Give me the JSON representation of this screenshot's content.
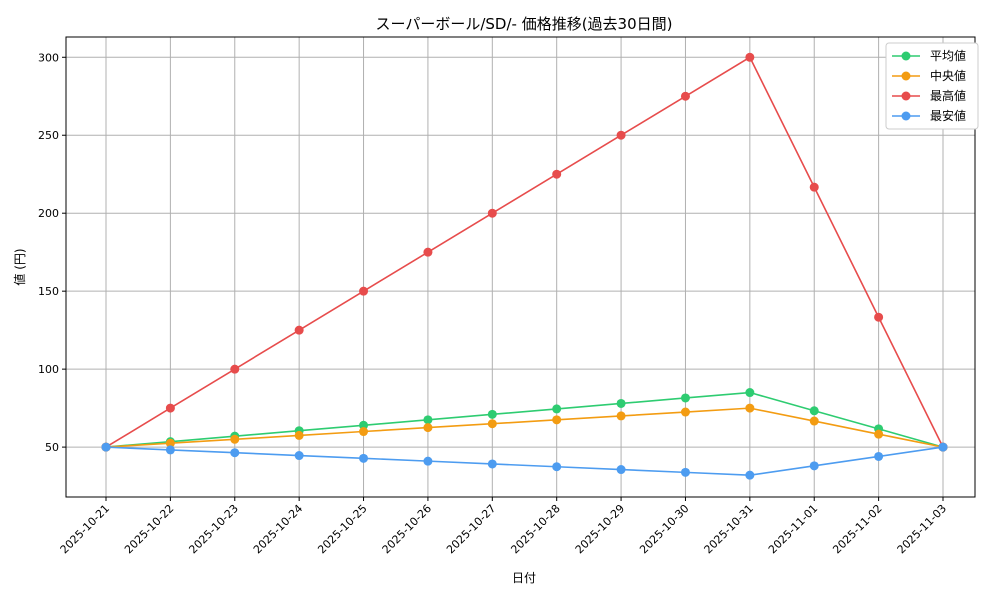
{
  "chart_data": {
    "type": "line",
    "title": "スーパーボール/SD/- 価格推移(過去30日間)",
    "xlabel": "日付",
    "ylabel": "値 (円)",
    "categories": [
      "2025-10-21",
      "2025-10-22",
      "2025-10-23",
      "2025-10-24",
      "2025-10-25",
      "2025-10-26",
      "2025-10-27",
      "2025-10-28",
      "2025-10-29",
      "2025-10-30",
      "2025-10-31",
      "2025-11-01",
      "2025-11-02",
      "2025-11-03"
    ],
    "ylim": [
      18,
      313
    ],
    "yticks": [
      50,
      100,
      150,
      200,
      250,
      300
    ],
    "grid": true,
    "legend_position": "top-right",
    "series": [
      {
        "name": "平均値",
        "color": "#2ecc71",
        "values": [
          50,
          53.5,
          57,
          60.5,
          64,
          67.5,
          71,
          74.5,
          78,
          81.5,
          85,
          73.3,
          61.7,
          50
        ]
      },
      {
        "name": "中央値",
        "color": "#f39c12",
        "values": [
          50,
          52.5,
          55,
          57.5,
          60,
          62.5,
          65,
          67.5,
          70,
          72.5,
          75,
          66.7,
          58.3,
          50
        ]
      },
      {
        "name": "最高値",
        "color": "#e74c4c",
        "values": [
          50,
          75,
          100,
          125,
          150,
          175,
          200,
          225,
          250,
          275,
          300,
          216.7,
          133.3,
          50
        ]
      },
      {
        "name": "最安値",
        "color": "#4d9cf0",
        "values": [
          50,
          48.2,
          46.4,
          44.6,
          42.8,
          41,
          39.2,
          37.4,
          35.6,
          33.8,
          32,
          38,
          44,
          50
        ]
      }
    ]
  }
}
